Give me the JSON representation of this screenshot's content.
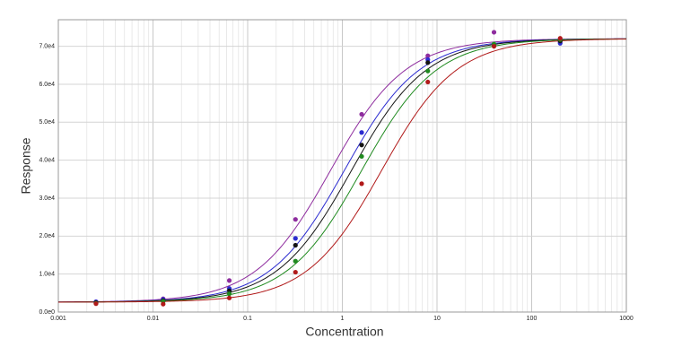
{
  "chart_data": {
    "type": "dose-response",
    "x_label": "Concentration",
    "y_label": "Response",
    "x": [
      0.0025,
      0.0128,
      0.064,
      0.32,
      1.6,
      8,
      40,
      200
    ],
    "log_x": true,
    "grid": true,
    "minor_grid": true,
    "xlim": [
      0.001,
      1000
    ],
    "xticks": [
      0.001,
      0.01,
      0.1,
      1,
      10,
      100,
      1000
    ],
    "ylim": [
      0,
      77000
    ],
    "yticks": [
      {
        "value": 0,
        "label": "0.0e0"
      },
      {
        "value": 10000,
        "label": "1.0e4"
      },
      {
        "value": 20000,
        "label": "2.0e4"
      },
      {
        "value": 30000,
        "label": "3.0e4"
      },
      {
        "value": 40000,
        "label": "4.0e4"
      },
      {
        "value": 50000,
        "label": "5.0e4"
      },
      {
        "value": 60000,
        "label": "6.0e4"
      },
      {
        "value": 70000,
        "label": "7.0e4"
      }
    ],
    "series": [
      {
        "color": "#8e2c9e",
        "values": [
          2700,
          3500,
          8300,
          24400,
          52100,
          67500,
          73700,
          71100
        ],
        "fit": {
          "bottom": 2600,
          "top": 72000,
          "ec50": 0.75,
          "hill": 1.1
        }
      },
      {
        "color": "#2b2bd0",
        "values": [
          2700,
          3300,
          6200,
          19400,
          47300,
          66500,
          70500,
          70800
        ],
        "fit": {
          "bottom": 2600,
          "top": 72000,
          "ec50": 1.05,
          "hill": 1.1
        }
      },
      {
        "color": "#141414",
        "values": [
          2500,
          3000,
          5600,
          17600,
          44000,
          65700,
          70300,
          71400
        ],
        "fit": {
          "bottom": 2600,
          "top": 72000,
          "ec50": 1.25,
          "hill": 1.1
        }
      },
      {
        "color": "#1f8a1f",
        "values": [
          2300,
          2800,
          4800,
          13400,
          41000,
          63500,
          70600,
          71800
        ],
        "fit": {
          "bottom": 2600,
          "top": 72000,
          "ec50": 1.6,
          "hill": 1.1
        }
      },
      {
        "color": "#b11a1a",
        "values": [
          2200,
          2100,
          3700,
          10500,
          33800,
          60600,
          70000,
          72100
        ],
        "fit": {
          "bottom": 2600,
          "top": 72000,
          "ec50": 2.6,
          "hill": 1.1
        }
      }
    ]
  }
}
